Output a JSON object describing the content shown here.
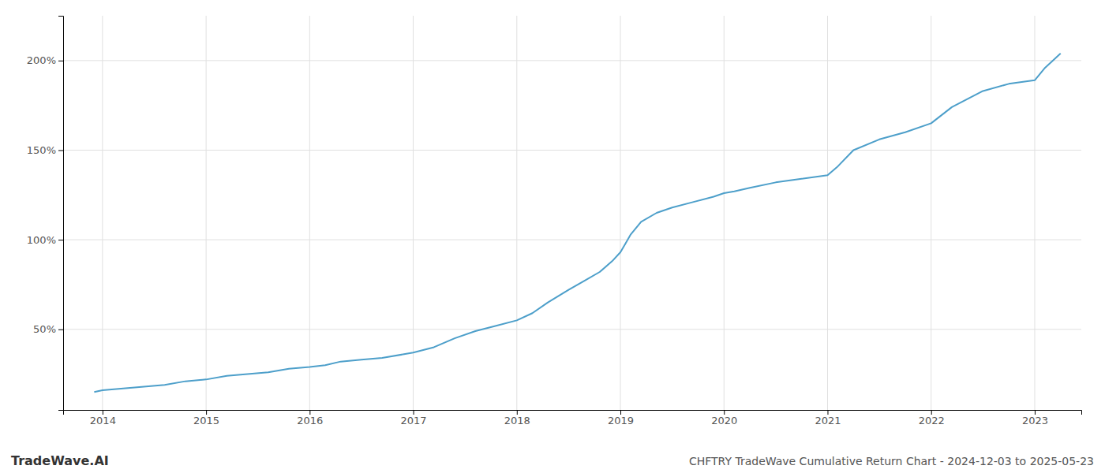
{
  "chart_data": {
    "type": "line",
    "title": "CHFTRY TradeWave Cumulative Return Chart - 2024-12-03 to 2025-05-23",
    "annotations": [
      {
        "text": "TradeWave.AI"
      }
    ],
    "color": "#4d9fca",
    "grid": true,
    "x": [
      2013.92,
      2014.0,
      2014.2,
      2014.4,
      2014.6,
      2014.8,
      2015.0,
      2015.2,
      2015.4,
      2015.6,
      2015.8,
      2016.0,
      2016.15,
      2016.3,
      2016.5,
      2016.7,
      2016.9,
      2017.0,
      2017.2,
      2017.4,
      2017.6,
      2017.8,
      2018.0,
      2018.15,
      2018.3,
      2018.5,
      2018.65,
      2018.8,
      2018.92,
      2019.0,
      2019.05,
      2019.1,
      2019.2,
      2019.35,
      2019.5,
      2019.7,
      2019.9,
      2020.0,
      2020.1,
      2020.25,
      2020.5,
      2020.75,
      2021.0,
      2021.1,
      2021.25,
      2021.5,
      2021.75,
      2022.0,
      2022.2,
      2022.5,
      2022.75,
      2023.0,
      2023.1,
      2023.25
    ],
    "values": [
      15,
      16,
      17,
      18,
      19,
      21,
      22,
      24,
      25,
      26,
      28,
      29,
      30,
      32,
      33,
      34,
      36,
      37,
      40,
      45,
      49,
      52,
      55,
      59,
      65,
      72,
      77,
      82,
      88,
      93,
      98,
      103,
      110,
      115,
      118,
      121,
      124,
      126,
      127,
      129,
      132,
      134,
      136,
      141,
      150,
      156,
      160,
      165,
      174,
      183,
      187,
      189,
      196,
      204
    ],
    "xlim": [
      2013.62,
      2023.45
    ],
    "ylim": [
      5,
      225
    ],
    "xticks": [
      2014,
      2015,
      2016,
      2017,
      2018,
      2019,
      2020,
      2021,
      2022,
      2023
    ],
    "yticks": [
      {
        "value": 50,
        "label": "50%"
      },
      {
        "value": 100,
        "label": "100%"
      },
      {
        "value": 150,
        "label": "150%"
      },
      {
        "value": 200,
        "label": "200%"
      }
    ]
  }
}
